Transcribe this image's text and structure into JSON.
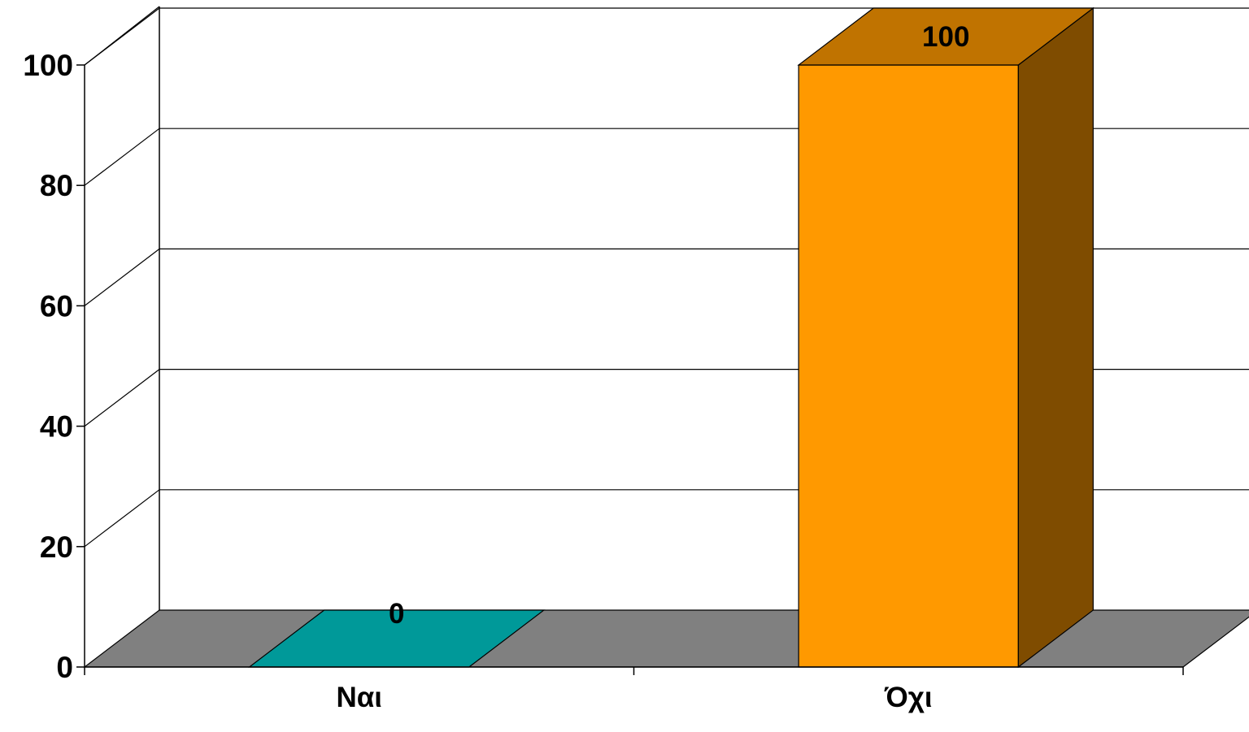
{
  "chart_data": {
    "type": "bar",
    "title": "",
    "xlabel": "",
    "ylabel": "",
    "categories": [
      "Ναι",
      "Όχι"
    ],
    "values": [
      0,
      100
    ],
    "data_labels": [
      "0",
      "100"
    ],
    "ylim": [
      0,
      100
    ],
    "yticks": [
      0,
      20,
      40,
      60,
      80,
      100
    ],
    "ytick_labels": [
      "0",
      "20",
      "40",
      "60",
      "80",
      "100"
    ],
    "grid": true,
    "legend": "none",
    "style": "3d-column",
    "colors": {
      "bars": [
        "#009999",
        "#FF9900"
      ],
      "bar_tops": [
        "#009999",
        "#C07300"
      ],
      "bar_sides": [
        "#006E6E",
        "#7F4C00"
      ],
      "floor": "#808080",
      "lines": "#000000",
      "background": "#FFFFFF"
    }
  }
}
